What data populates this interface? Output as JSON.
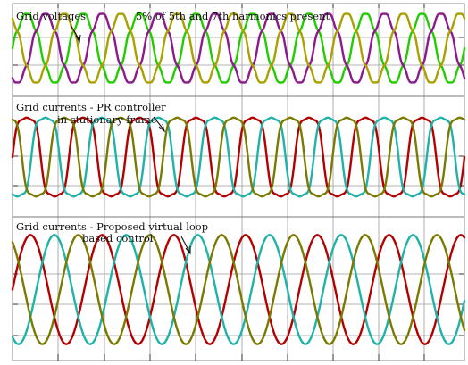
{
  "chart_data": [
    {
      "type": "line",
      "title": "Grid voltages",
      "subtitle": "5% of 5th and 7th harmonics present",
      "xlabel": "",
      "ylabel": "",
      "cycles": 8,
      "harmonics": {
        "h5_percent": 5,
        "h7_percent": 5
      },
      "ylim": [
        -1.3,
        1.3
      ],
      "grid": true,
      "series": [
        {
          "phase_deg": 0,
          "color": "#22cc00"
        },
        {
          "phase_deg": -120,
          "color": "#8b1a8b"
        },
        {
          "phase_deg": 120,
          "color": "#aaa000"
        }
      ]
    },
    {
      "type": "line",
      "title": "Grid currents - PR controller in stationary frame",
      "title_lines": [
        "Grid currents - PR controller",
        "in stationary frame"
      ],
      "xlabel": "",
      "ylabel": "",
      "cycles": 8,
      "distorted": true,
      "ylim": [
        -1.3,
        1.3
      ],
      "grid": true,
      "series": [
        {
          "phase_deg": 0,
          "color": "#b30000"
        },
        {
          "phase_deg": -120,
          "color": "#1fb3a8"
        },
        {
          "phase_deg": 120,
          "color": "#7a7a00"
        }
      ]
    },
    {
      "type": "line",
      "title": "Grid currents - Proposed virtual loop based control",
      "title_lines": [
        "Grid currents - Proposed virtual loop",
        "based control"
      ],
      "xlabel": "",
      "ylabel": "",
      "cycles": 6.3,
      "distorted": false,
      "ylim": [
        -1.3,
        1.3
      ],
      "grid": true,
      "series": [
        {
          "phase_deg": 0,
          "color": "#b30000"
        },
        {
          "phase_deg": -120,
          "color": "#1fb3a8"
        },
        {
          "phase_deg": 120,
          "color": "#7a7a00"
        }
      ]
    }
  ]
}
